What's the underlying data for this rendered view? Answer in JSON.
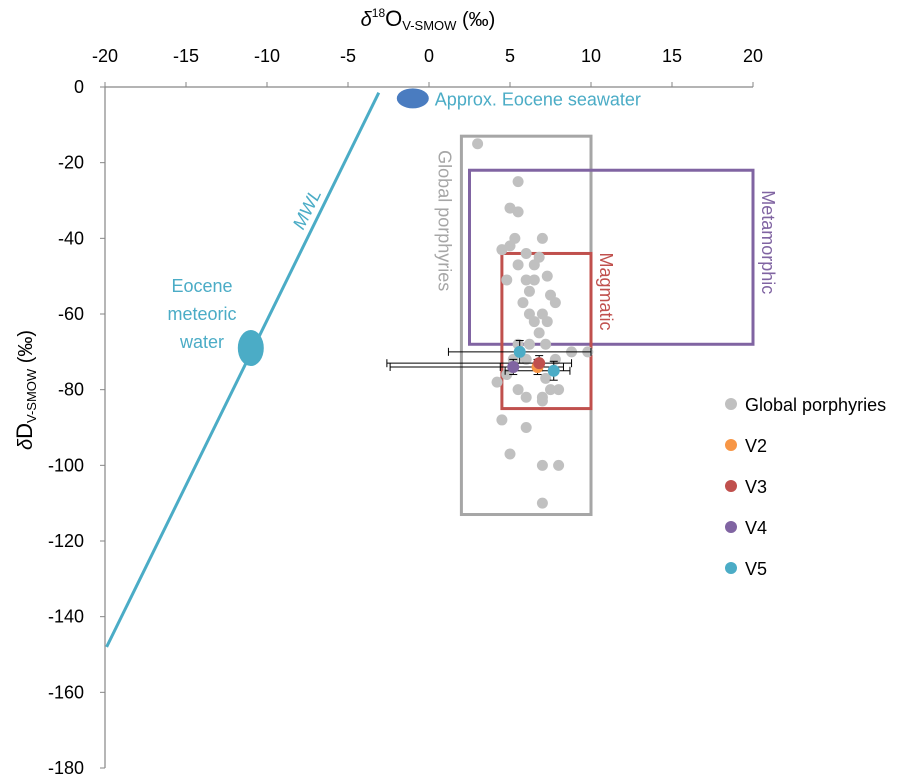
{
  "chart_data": {
    "type": "scatter",
    "x_axis": {
      "label_prefix": "δ",
      "label_sup": "18",
      "label_main": "O",
      "label_sub": "V-SMOW",
      "label_suffix": " (‰)",
      "position": "top",
      "range": [
        -20,
        20
      ],
      "ticks": [
        "-20",
        "-15",
        "-10",
        "-5",
        "0",
        "5",
        "10",
        "15",
        "20"
      ]
    },
    "y_axis": {
      "label_prefix": "δ",
      "label_main": "D",
      "label_sub": "V-SMOW",
      "label_suffix": " (‰)",
      "range": [
        -180,
        0
      ],
      "ticks": [
        "0",
        "-20",
        "-40",
        "-60",
        "-80",
        "-100",
        "-120",
        "-140",
        "-160",
        "-180"
      ]
    },
    "mwl": {
      "label": "MWL",
      "color": "#4bacc6",
      "start": [
        -3.1,
        -1.5
      ],
      "end": [
        -19.9,
        -148
      ]
    },
    "annotations": {
      "seawater": {
        "label": "Approx. Eocene seawater",
        "x": -1,
        "y": -3,
        "color": "#4a7cc0",
        "text_color": "#4bacc6"
      },
      "meteoric": {
        "line1": "Eocene",
        "line2": "meteoric",
        "line3": "water",
        "x": -11,
        "y": -69,
        "color": "#4bacc6"
      }
    },
    "boxes": [
      {
        "label": "Global porphyries",
        "x_range": [
          2,
          10
        ],
        "y_range": [
          -113,
          -13
        ],
        "color": "#a6a6a6"
      },
      {
        "label": "Metamorphic",
        "x_range": [
          2.5,
          20
        ],
        "y_range": [
          -68,
          -22
        ],
        "color": "#8064a2"
      },
      {
        "label": "Magmatic",
        "x_range": [
          4.5,
          10
        ],
        "y_range": [
          -85,
          -44
        ],
        "color": "#c0504d"
      }
    ],
    "series": [
      {
        "name": "Global porphyries",
        "color": "#c0c0c0",
        "points": [
          [
            3,
            -15
          ],
          [
            5.5,
            -25
          ],
          [
            5,
            -32
          ],
          [
            5.5,
            -33
          ],
          [
            4.5,
            -43
          ],
          [
            5,
            -42
          ],
          [
            5.3,
            -40
          ],
          [
            7,
            -40
          ],
          [
            6,
            -44
          ],
          [
            6.8,
            -45
          ],
          [
            4.8,
            -51
          ],
          [
            6,
            -51
          ],
          [
            6.5,
            -51
          ],
          [
            7.3,
            -50
          ],
          [
            5.5,
            -47
          ],
          [
            6.5,
            -47
          ],
          [
            6.2,
            -54
          ],
          [
            7.5,
            -55
          ],
          [
            5.8,
            -57
          ],
          [
            7.8,
            -57
          ],
          [
            6.2,
            -60
          ],
          [
            7,
            -60
          ],
          [
            6.5,
            -62
          ],
          [
            7.3,
            -62
          ],
          [
            6.8,
            -65
          ],
          [
            5.5,
            -68
          ],
          [
            6.2,
            -68
          ],
          [
            7.2,
            -68
          ],
          [
            8.8,
            -70
          ],
          [
            9.8,
            -70
          ],
          [
            5.2,
            -72
          ],
          [
            6,
            -72
          ],
          [
            7.8,
            -72
          ],
          [
            4.8,
            -76
          ],
          [
            7.2,
            -77
          ],
          [
            4.2,
            -78
          ],
          [
            5.5,
            -80
          ],
          [
            7.5,
            -80
          ],
          [
            8,
            -80
          ],
          [
            6,
            -82
          ],
          [
            7,
            -82
          ],
          [
            7,
            -83
          ],
          [
            4.5,
            -88
          ],
          [
            6,
            -90
          ],
          [
            5,
            -97
          ],
          [
            7,
            -100
          ],
          [
            8,
            -100
          ],
          [
            7,
            -110
          ]
        ]
      },
      {
        "name": "V2",
        "color": "#f79646",
        "points": [
          [
            6.7,
            -74
          ]
        ]
      },
      {
        "name": "V3",
        "color": "#c0504d",
        "points": [
          [
            6.8,
            -73
          ]
        ]
      },
      {
        "name": "V4",
        "color": "#8064a2",
        "points": [
          [
            5.2,
            -74
          ]
        ]
      },
      {
        "name": "V5",
        "color": "#4bacc6",
        "points": [
          [
            5.6,
            -70
          ],
          [
            7.7,
            -75
          ]
        ]
      }
    ],
    "error_bars": [
      {
        "x": 5.6,
        "y": -70,
        "xerr": [
          4.4,
          4.4
        ],
        "yerr": [
          3,
          3
        ]
      },
      {
        "x": 6.8,
        "y": -73,
        "xerr": [
          9.4,
          2.0
        ],
        "yerr": [
          2,
          2
        ]
      },
      {
        "x": 6.7,
        "y": -74,
        "xerr": [
          9.1,
          1.6
        ],
        "yerr": [
          2,
          2
        ]
      },
      {
        "x": 5.2,
        "y": -74,
        "xerr": [
          0.8,
          1.8
        ],
        "yerr": [
          2,
          2
        ]
      },
      {
        "x": 7.7,
        "y": -75,
        "xerr": [
          3.0,
          1.0
        ],
        "yerr": [
          2.5,
          2.5
        ]
      }
    ],
    "legend": {
      "placement": "right",
      "items": [
        {
          "label": "Global porphyries",
          "color": "#c0c0c0"
        },
        {
          "label": "V2",
          "color": "#f79646"
        },
        {
          "label": "V3",
          "color": "#c0504d"
        },
        {
          "label": "V4",
          "color": "#8064a2"
        },
        {
          "label": "V5",
          "color": "#4bacc6"
        }
      ]
    }
  }
}
